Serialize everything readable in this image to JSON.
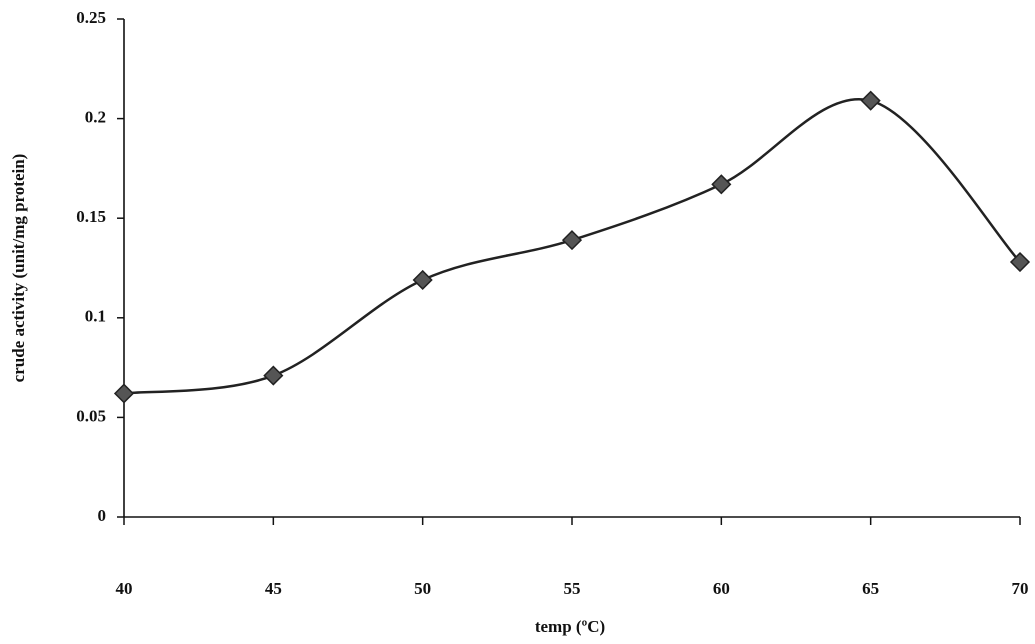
{
  "chart_data": {
    "type": "line",
    "x_label": "temp (ºC)",
    "y_label": "crude activity (unit/mg protein)",
    "x": [
      40,
      45,
      50,
      55,
      60,
      65,
      70
    ],
    "series": [
      {
        "color": "#222222",
        "values": [
          0.062,
          0.071,
          0.119,
          0.139,
          0.167,
          0.209,
          0.128
        ]
      }
    ],
    "xlim": [
      40,
      70
    ],
    "xticks": [
      40,
      45,
      50,
      55,
      60,
      65,
      70
    ],
    "ylim": [
      0,
      0.25
    ],
    "yticks": [
      0,
      0.05,
      0.1,
      0.15,
      0.2,
      0.25
    ],
    "smooth": true
  }
}
